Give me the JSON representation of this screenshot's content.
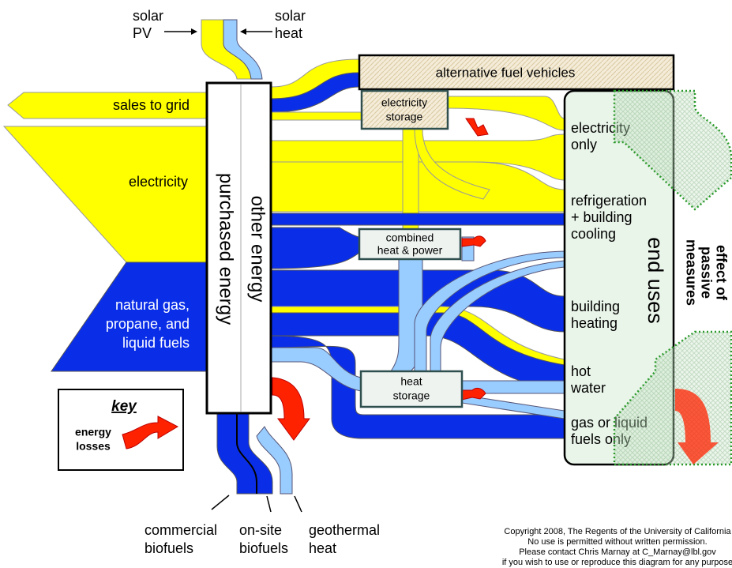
{
  "solar_pv": [
    "solar",
    "PV"
  ],
  "solar_heat": [
    "solar",
    "heat"
  ],
  "sources": {
    "sales_to_grid": "sales to grid",
    "electricity": "electricity",
    "natural_gas": [
      "natural gas,",
      "propane, and",
      "liquid fuels"
    ]
  },
  "purchased": [
    "other energy",
    "purchased energy"
  ],
  "alternative_fuel_vehicles": "alternative fuel vehicles",
  "storage": {
    "electricity_storage": [
      "electricity",
      "storage"
    ],
    "chp": [
      "combined",
      "heat & power"
    ],
    "heat_storage": [
      "heat",
      "storage"
    ]
  },
  "end_uses": {
    "title": "end uses",
    "items": [
      [
        "electricity",
        "only"
      ],
      [
        "refrigeration",
        "+ building",
        "cooling"
      ],
      [
        "building",
        "heating"
      ],
      [
        "hot",
        "water"
      ],
      [
        "gas or liquid",
        "fuels only"
      ]
    ]
  },
  "passive": [
    "effect of",
    "passive",
    "measures"
  ],
  "key": {
    "title": "key",
    "label": [
      "energy",
      "losses"
    ]
  },
  "bottom": [
    [
      "commercial",
      "biofuels"
    ],
    [
      "on-site",
      "biofuels"
    ],
    [
      "geothermal",
      "heat"
    ]
  ],
  "copyright": [
    "Copyright 2008, The Regents of the University of California",
    "No use is permitted without written permission.",
    "Please contact  Chris Marnay at C_Marnay@lbl.gov",
    "if you wish to use or reproduce this diagram for any purpose"
  ]
}
